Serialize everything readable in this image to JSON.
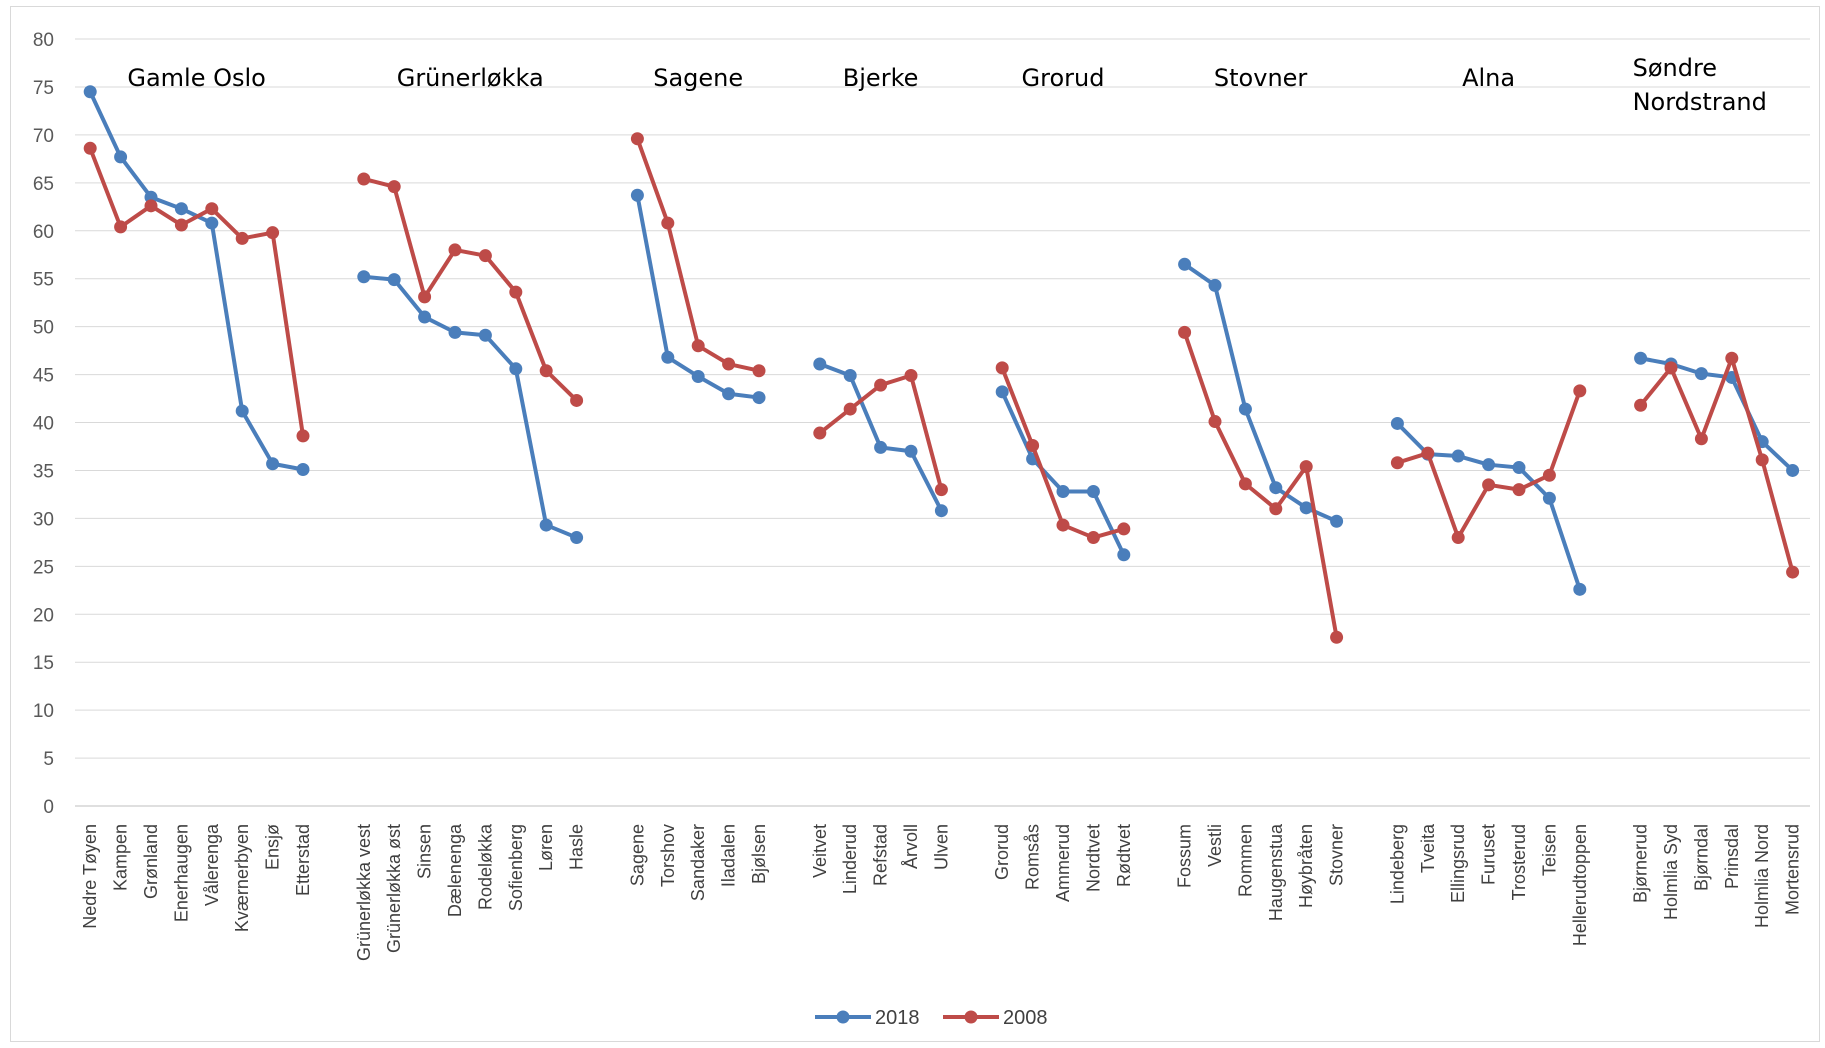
{
  "chart_data": {
    "type": "line",
    "title": "",
    "xlabel": "",
    "ylabel": "",
    "ylim": [
      0,
      80
    ],
    "yticks": [
      0,
      5,
      10,
      15,
      20,
      25,
      30,
      35,
      40,
      45,
      50,
      55,
      60,
      65,
      70,
      75,
      80
    ],
    "grid": true,
    "legend_position": "bottom",
    "groups": [
      {
        "name": "Gamle Oslo",
        "categories": [
          "Nedre Tøyen",
          "Kampen",
          "Grønland",
          "Enerhaugen",
          "Vålerenga",
          "Kværnerbyen",
          "Ensjø",
          "Etterstad"
        ]
      },
      {
        "name": "Grünerløkka",
        "categories": [
          "Grünerløkka vest",
          "Grünerløkka øst",
          "Sinsen",
          "Dælenenga",
          "Rodeløkka",
          "Sofienberg",
          "Løren",
          "Hasle"
        ]
      },
      {
        "name": "Sagene",
        "categories": [
          "Sagene",
          "Torshov",
          "Sandaker",
          "Iladalen",
          "Bjølsen"
        ]
      },
      {
        "name": "Bjerke",
        "categories": [
          "Veitvet",
          "Linderud",
          "Refstad",
          "Årvoll",
          "Ulven"
        ]
      },
      {
        "name": "Grorud",
        "categories": [
          "Grorud",
          "Romsås",
          "Ammerud",
          "Nordtvet",
          "Rødtvet"
        ]
      },
      {
        "name": "Stovner",
        "categories": [
          "Fossum",
          "Vestli",
          "Rommen",
          "Haugenstua",
          "Høybråten",
          "Stovner"
        ]
      },
      {
        "name": "Alna",
        "categories": [
          "Lindeberg",
          "Tveita",
          "Ellingsrud",
          "Furuset",
          "Trosterud",
          "Teisen",
          "Hellerudtoppen"
        ]
      },
      {
        "name": "Søndre Nordstrand",
        "name_lines": [
          "Søndre",
          "Nordstrand"
        ],
        "categories": [
          "Bjørnerud",
          "Holmlia Syd",
          "Bjørndal",
          "Prinsdal",
          "Holmlia Nord",
          "Mortensrud"
        ]
      }
    ],
    "series": [
      {
        "name": "2018",
        "color": "#4a7ebb",
        "values": [
          [
            74.5,
            67.7,
            63.5,
            62.3,
            60.8,
            41.2,
            35.7,
            35.1
          ],
          [
            55.2,
            54.9,
            51.0,
            49.4,
            49.1,
            45.6,
            29.3,
            28.0
          ],
          [
            63.7,
            46.8,
            44.8,
            43.0,
            42.6
          ],
          [
            46.1,
            44.9,
            37.4,
            37.0,
            30.8
          ],
          [
            43.2,
            36.2,
            32.8,
            32.8,
            26.2
          ],
          [
            56.5,
            54.3,
            41.4,
            33.2,
            31.1,
            29.7
          ],
          [
            39.9,
            36.7,
            36.5,
            35.6,
            35.3,
            32.1,
            22.6
          ],
          [
            46.7,
            46.1,
            45.1,
            44.7,
            38.0,
            35.0
          ]
        ]
      },
      {
        "name": "2008",
        "color": "#be4b48",
        "values": [
          [
            68.6,
            60.4,
            62.6,
            60.6,
            62.3,
            59.2,
            59.8,
            38.6
          ],
          [
            65.4,
            64.6,
            53.1,
            58.0,
            57.4,
            53.6,
            45.4,
            42.3
          ],
          [
            69.6,
            60.8,
            48.0,
            46.1,
            45.4
          ],
          [
            38.9,
            41.4,
            43.9,
            44.9,
            33.0
          ],
          [
            45.7,
            37.6,
            29.3,
            28.0,
            28.9
          ],
          [
            49.4,
            40.1,
            33.6,
            31.0,
            35.4,
            17.6
          ],
          [
            35.8,
            36.8,
            28.0,
            33.5,
            33.0,
            34.5,
            43.3
          ],
          [
            41.8,
            45.7,
            38.3,
            46.7,
            36.1,
            24.4
          ]
        ]
      }
    ]
  }
}
